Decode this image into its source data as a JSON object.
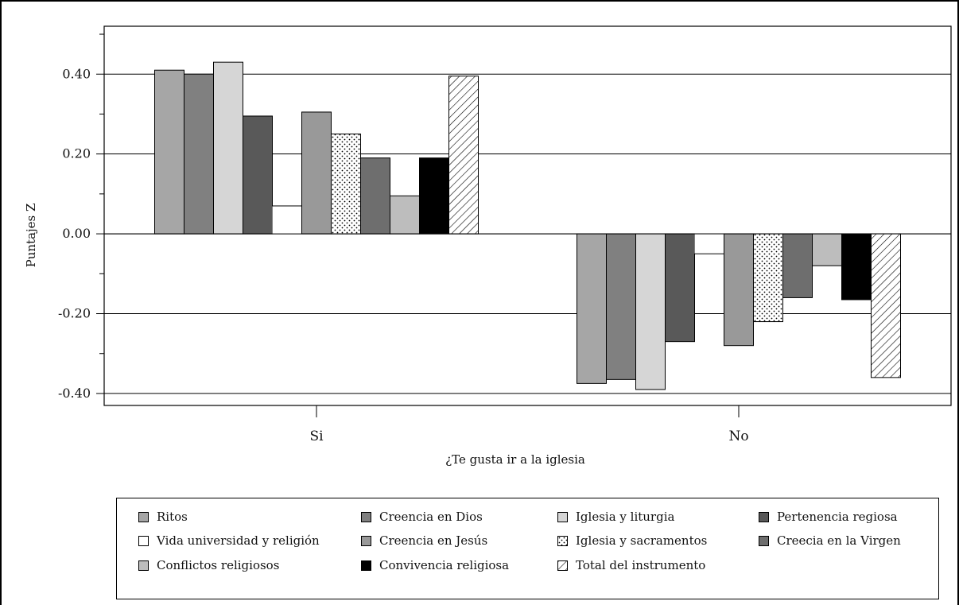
{
  "chart_data": {
    "type": "bar",
    "categories": [
      "Si",
      "No"
    ],
    "xlabel": "¿Te gusta ir a la iglesia",
    "ylabel": "Puntajes Z",
    "ylim": [
      -0.43,
      0.52
    ],
    "yticks": [
      -0.4,
      -0.2,
      0.0,
      0.2,
      0.4
    ],
    "ytick_labels": [
      "-0.40",
      "-0.20",
      "0.00",
      "0.20",
      "0.40"
    ],
    "grid": true,
    "legend_position": "bottom",
    "series": [
      {
        "name": "Ritos",
        "color": "#a6a6a6",
        "pattern": "solid",
        "values": [
          0.41,
          -0.375
        ]
      },
      {
        "name": "Vida universidad y religión",
        "color": "#ffffff",
        "pattern": "solid",
        "values": [
          0.07,
          -0.05
        ]
      },
      {
        "name": "Conflictos religiosos",
        "color": "#bdbdbd",
        "pattern": "solid",
        "values": [
          0.095,
          -0.08
        ]
      },
      {
        "name": "Creencia en Dios",
        "color": "#808080",
        "pattern": "solid",
        "values": [
          0.4,
          -0.365
        ]
      },
      {
        "name": "Creencia en Jesús",
        "color": "#999999",
        "pattern": "solid",
        "values": [
          0.305,
          -0.28
        ]
      },
      {
        "name": "Convivencia religiosa",
        "color": "#000000",
        "pattern": "solid",
        "values": [
          0.19,
          -0.165
        ]
      },
      {
        "name": "Iglesia y liturgia",
        "color": "#d6d6d6",
        "pattern": "solid",
        "values": [
          0.43,
          -0.39
        ]
      },
      {
        "name": "Iglesia y sacramentos",
        "color": "#ffffff",
        "pattern": "dots",
        "values": [
          0.25,
          -0.22
        ]
      },
      {
        "name": "Total del instrumento",
        "color": "#ffffff",
        "pattern": "hatch",
        "values": [
          0.395,
          -0.36
        ]
      },
      {
        "name": "Pertenencia regiosa",
        "color": "#595959",
        "pattern": "solid",
        "values": [
          0.295,
          -0.27
        ]
      },
      {
        "name": "Creecia en la Virgen",
        "color": "#6e6e6e",
        "pattern": "solid",
        "values": [
          0.19,
          -0.16
        ]
      }
    ],
    "bar_order": [
      "Ritos",
      "Creencia en Dios",
      "Iglesia y liturgia",
      "Pertenencia regiosa",
      "Vida universidad y religión",
      "Creencia en Jesús",
      "Iglesia y sacramentos",
      "Creecia en la Virgen",
      "Conflictos religiosos",
      "Convivencia religiosa",
      "Total del instrumento"
    ]
  }
}
